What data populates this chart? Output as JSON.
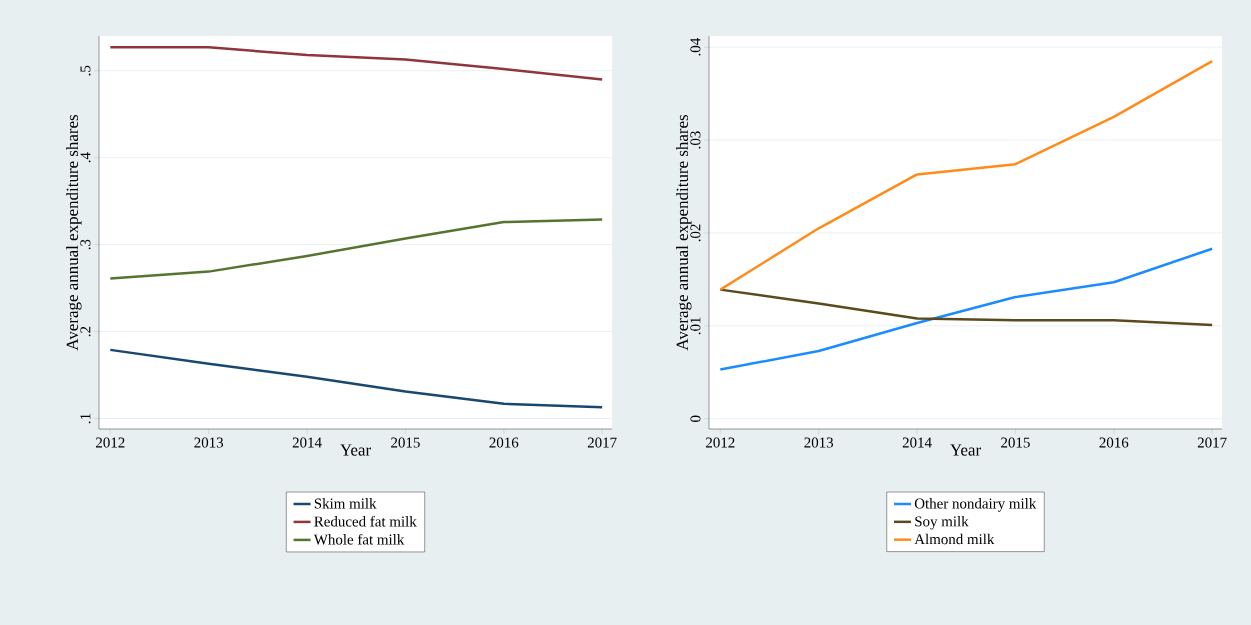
{
  "chart_data": [
    {
      "type": "line",
      "xlabel": "Year",
      "ylabel": "Average annual expenditure shares",
      "x": [
        2012,
        2013,
        2014,
        2015,
        2016,
        2017
      ],
      "xlim": [
        2011.885,
        2017.1
      ],
      "ylim": [
        0.088,
        0.54
      ],
      "xticks": [
        2012,
        2013,
        2014,
        2015,
        2016,
        2017
      ],
      "yticks": [
        {
          "value": 0.1,
          "label": ".1"
        },
        {
          "value": 0.2,
          "label": ".2"
        },
        {
          "value": 0.3,
          "label": ".3"
        },
        {
          "value": 0.4,
          "label": ".4"
        },
        {
          "value": 0.5,
          "label": ".5"
        }
      ],
      "grid": "y",
      "legend": "bottom",
      "series": [
        {
          "name": "Skim milk",
          "color": "#1a476f",
          "values": [
            0.179,
            0.163,
            0.148,
            0.131,
            0.117,
            0.113
          ]
        },
        {
          "name": "Reduced fat milk",
          "color": "#90353b",
          "values": [
            0.527,
            0.527,
            0.518,
            0.513,
            0.502,
            0.49
          ]
        },
        {
          "name": "Whole fat milk",
          "color": "#55752f",
          "values": [
            0.261,
            0.269,
            0.287,
            0.307,
            0.326,
            0.329
          ]
        }
      ]
    },
    {
      "type": "line",
      "xlabel": "Year",
      "ylabel": "Average annual expenditure shares",
      "x": [
        2012,
        2013,
        2014,
        2015,
        2016,
        2017
      ],
      "xlim": [
        2011.885,
        2017.1
      ],
      "ylim": [
        -0.0011,
        0.0412
      ],
      "xticks": [
        2012,
        2013,
        2014,
        2015,
        2016,
        2017
      ],
      "yticks": [
        0,
        {
          "value": 0.01,
          "label": ".01"
        },
        {
          "value": 0.02,
          "label": ".02"
        },
        {
          "value": 0.03,
          "label": ".03"
        },
        {
          "value": 0.04,
          "label": ".04"
        }
      ],
      "grid": "y",
      "legend": "bottom",
      "series": [
        {
          "name": "Other nondairy milk",
          "color": "#1a8cff",
          "values": [
            0.0053,
            0.0073,
            0.0103,
            0.0131,
            0.0147,
            0.0183
          ]
        },
        {
          "name": "Soy milk",
          "color": "#5b4a1d",
          "values": [
            0.0139,
            0.0124,
            0.0108,
            0.0106,
            0.0106,
            0.0101
          ]
        },
        {
          "name": "Almond milk",
          "color": "#ff8c1a",
          "values": [
            0.0139,
            0.0205,
            0.0263,
            0.0274,
            0.0325,
            0.0385
          ]
        }
      ]
    }
  ]
}
